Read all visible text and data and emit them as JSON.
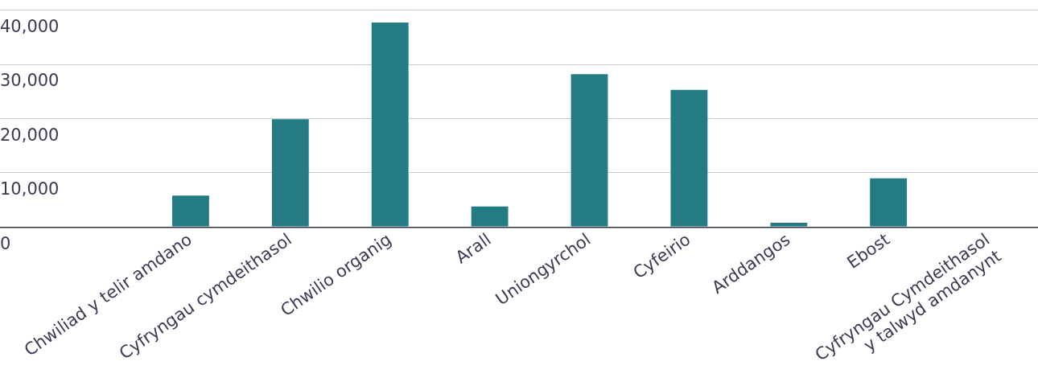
{
  "chart_data": {
    "type": "bar",
    "categories": [
      "Chwiliad y telir amdano",
      "Cyfryngau cymdeithasol",
      "Chwilio organig",
      "Arall",
      "Uniongyrchol",
      "Cyfeirio",
      "Arddangos",
      "Ebost",
      "Cyfryngau Cymdeithasol y talwyd amdanynt"
    ],
    "values": [
      5800,
      19900,
      37700,
      3800,
      28200,
      25300,
      800,
      9000,
      0
    ],
    "color": "#247b84",
    "ylim": [
      0,
      40000
    ],
    "yticks": [
      {
        "value": 0,
        "label": "0"
      },
      {
        "value": 10000,
        "label": "10,000"
      },
      {
        "value": 20000,
        "label": "20,000"
      },
      {
        "value": 30000,
        "label": "30,000"
      },
      {
        "value": 40000,
        "label": "40,000"
      }
    ],
    "grid": "y",
    "legend": false
  }
}
